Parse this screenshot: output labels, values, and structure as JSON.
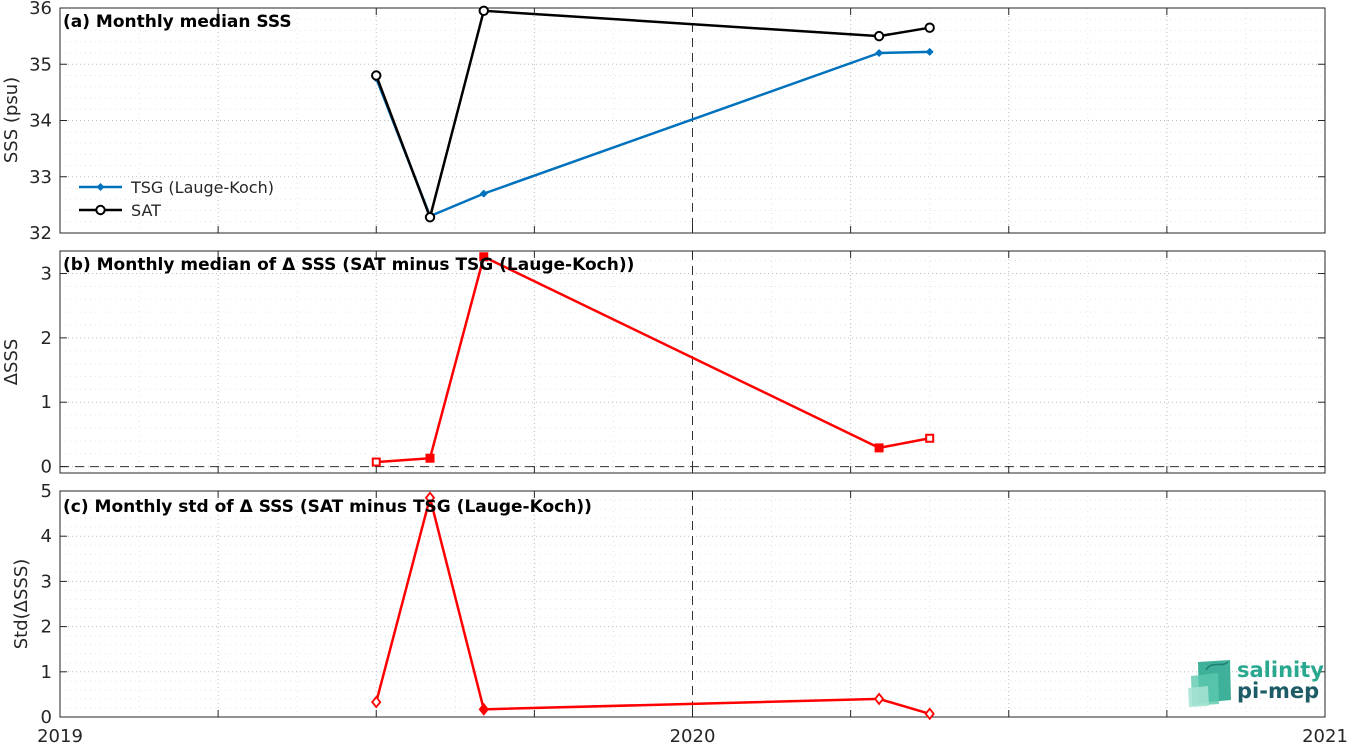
{
  "chart_data": [
    {
      "type": "line",
      "title": "(a) Monthly median SSS",
      "ylabel": "SSS (psu)",
      "xlim": [
        2019.0,
        2021.0
      ],
      "ylim": [
        32,
        36
      ],
      "yticks": [
        32,
        33,
        34,
        35,
        36
      ],
      "grid": true,
      "legend_position": "bottom-left",
      "reference_vline_x": 2020.0,
      "series": [
        {
          "name": "TSG (Lauge-Koch)",
          "color": "#0072BD",
          "marker": "filled-diamond",
          "x": [
            2019.5,
            2019.585,
            2019.67,
            2020.295,
            2020.375
          ],
          "y": [
            34.75,
            32.3,
            32.7,
            35.2,
            35.22
          ]
        },
        {
          "name": "SAT",
          "color": "#000000",
          "marker": "open-circle",
          "x": [
            2019.5,
            2019.585,
            2019.67,
            2020.295,
            2020.375
          ],
          "y": [
            34.8,
            32.28,
            35.95,
            35.5,
            35.65
          ]
        }
      ]
    },
    {
      "type": "line",
      "title": "(b) Monthly median of Δ SSS (SAT minus TSG (Lauge-Koch))",
      "ylabel": "ΔSSS",
      "xlim": [
        2019.0,
        2021.0
      ],
      "ylim": [
        -0.1,
        3.35
      ],
      "yticks": [
        0,
        1,
        2,
        3
      ],
      "grid": true,
      "reference_hline_y": 0,
      "reference_vline_x": 2020.0,
      "series": [
        {
          "color": "#FF0000",
          "marker": "square",
          "x": [
            2019.5,
            2019.585,
            2019.67,
            2020.295,
            2020.375
          ],
          "y": [
            0.07,
            0.13,
            3.26,
            0.29,
            0.44
          ],
          "filled": [
            false,
            true,
            true,
            true,
            false
          ]
        }
      ]
    },
    {
      "type": "line",
      "title": "(c) Monthly std of Δ SSS (SAT minus TSG (Lauge-Koch))",
      "ylabel": "Std(ΔSSS)",
      "xlim": [
        2019.0,
        2021.0
      ],
      "ylim": [
        0,
        5
      ],
      "yticks": [
        0,
        1,
        2,
        3,
        4,
        5
      ],
      "xticks": [
        2019,
        2020,
        2021
      ],
      "xticklabels": [
        "2019",
        "2020",
        "2021"
      ],
      "grid": true,
      "reference_vline_x": 2020.0,
      "series": [
        {
          "color": "#FF0000",
          "marker": "diamond",
          "x": [
            2019.5,
            2019.585,
            2019.67,
            2020.295,
            2020.375
          ],
          "y": [
            0.33,
            4.85,
            0.17,
            0.4,
            0.07
          ],
          "filled": [
            false,
            false,
            true,
            false,
            false
          ]
        }
      ]
    }
  ],
  "logo": {
    "line1": "salinity",
    "line2": "pi-mep",
    "color1": "#2aa88f",
    "color2": "#1d5c66"
  }
}
